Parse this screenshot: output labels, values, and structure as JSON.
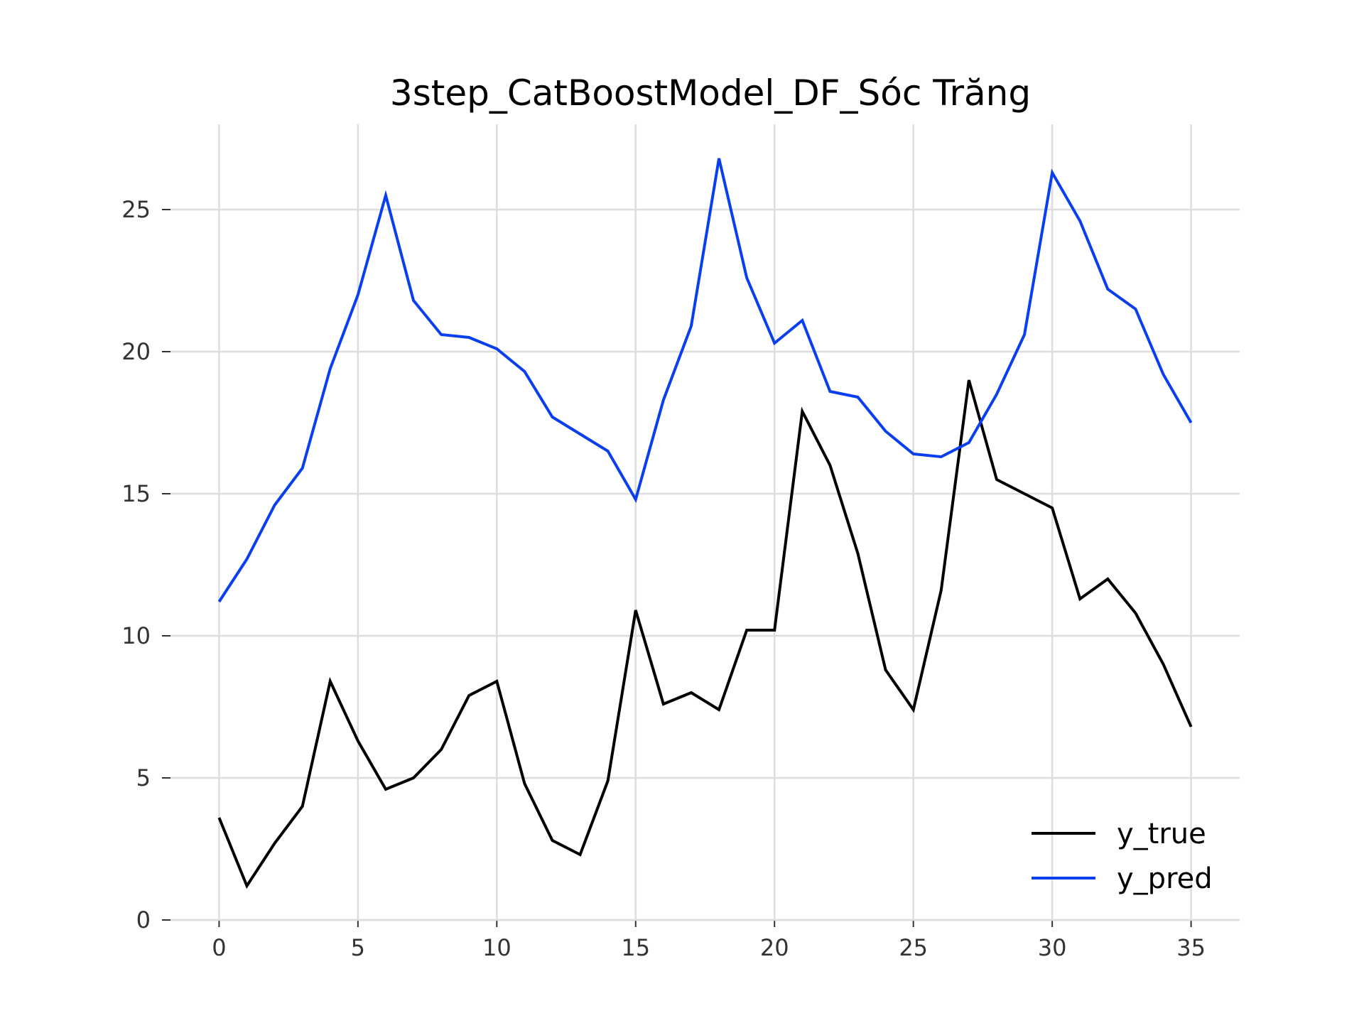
{
  "chart_data": {
    "type": "line",
    "title": "3step_CatBoostModel_DF_Sóc Trăng",
    "xlabel": "",
    "ylabel": "",
    "xlim": [
      -1.75,
      36.75
    ],
    "ylim": [
      0,
      28.0
    ],
    "x_ticks": [
      0,
      5,
      10,
      15,
      20,
      25,
      30,
      35
    ],
    "y_ticks": [
      0,
      5,
      10,
      15,
      20,
      25
    ],
    "grid": true,
    "legend_position": "lower-right",
    "x": [
      0,
      1,
      2,
      3,
      4,
      5,
      6,
      7,
      8,
      9,
      10,
      11,
      12,
      13,
      14,
      15,
      16,
      17,
      18,
      19,
      20,
      21,
      22,
      23,
      24,
      25,
      26,
      27,
      28,
      29,
      30,
      31,
      32,
      33,
      34,
      35
    ],
    "series": [
      {
        "name": "y_true",
        "color": "#000000",
        "values": [
          3.6,
          1.2,
          2.7,
          4.0,
          8.4,
          6.3,
          4.6,
          5.0,
          6.0,
          7.9,
          8.4,
          4.8,
          2.8,
          2.3,
          4.9,
          10.9,
          7.6,
          8.0,
          7.4,
          10.2,
          10.2,
          17.9,
          16.0,
          12.9,
          8.8,
          7.4,
          11.6,
          19.0,
          15.5,
          15.0,
          14.5,
          11.3,
          12.0,
          10.8,
          9.0,
          6.8
        ]
      },
      {
        "name": "y_pred",
        "color": "#0a3ff0",
        "values": [
          11.2,
          12.7,
          14.6,
          15.9,
          19.4,
          22.0,
          25.5,
          21.8,
          20.6,
          20.5,
          20.1,
          19.3,
          17.7,
          17.1,
          16.5,
          14.8,
          18.3,
          20.9,
          26.8,
          22.6,
          20.3,
          21.1,
          18.6,
          18.4,
          17.2,
          16.4,
          16.3,
          16.8,
          18.5,
          20.6,
          26.3,
          24.6,
          22.2,
          21.5,
          19.2,
          17.5
        ]
      }
    ]
  }
}
